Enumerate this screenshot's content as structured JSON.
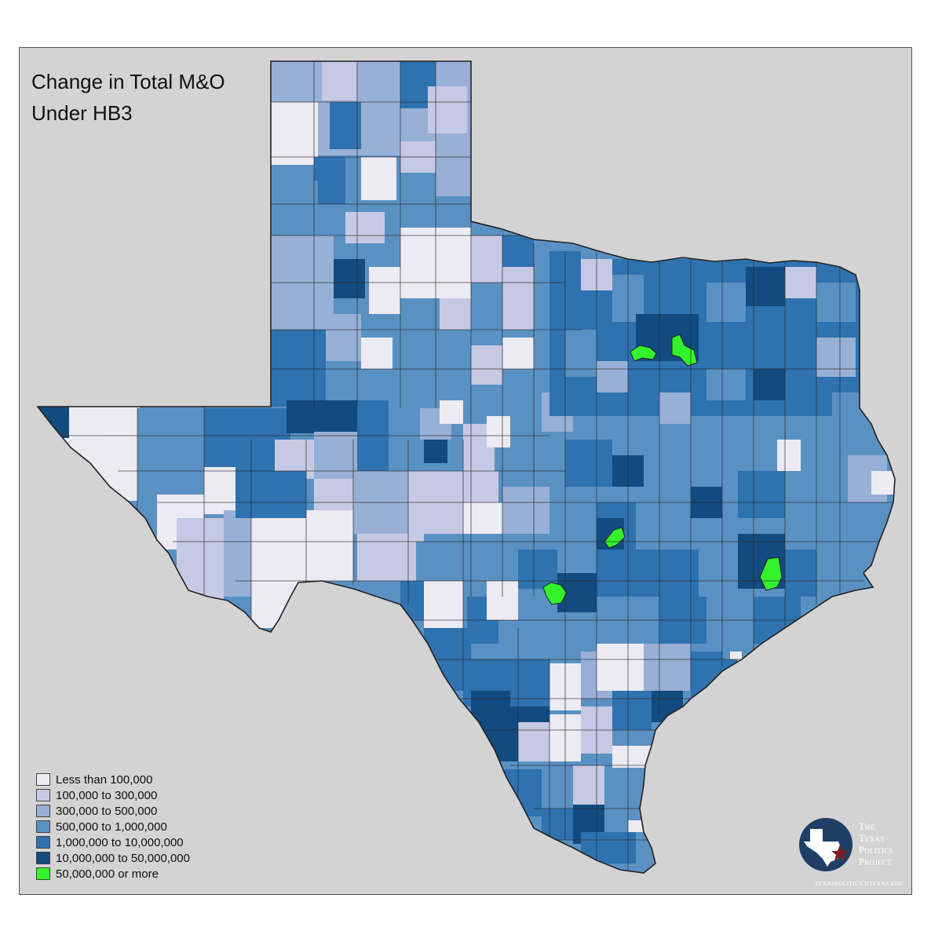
{
  "title": {
    "line1": "Change in Total M&O",
    "line2": "Under HB3"
  },
  "legend": {
    "items": [
      {
        "label": "Less than 100,000",
        "color": "#ecebf4"
      },
      {
        "label": "100,000 to 300,000",
        "color": "#c6c9e3"
      },
      {
        "label": "300,000 to 500,000",
        "color": "#98afd6"
      },
      {
        "label": "500,000 to 1,000,000",
        "color": "#5a91c3"
      },
      {
        "label": "1,000,000 to 10,000,000",
        "color": "#2e72b0"
      },
      {
        "label": "10,000,000 to 50,000,000",
        "color": "#124b7f"
      },
      {
        "label": "50,000,000 or more",
        "color": "#33f22b"
      }
    ]
  },
  "logo": {
    "line1": "The",
    "line2": "Texas",
    "line3": "Politics",
    "line4": "Project",
    "url": "TEXASPOLITICS.UTEXAS.EDU"
  },
  "colors": {
    "background": "#d3d3d3",
    "boundary": "#2a2a2a",
    "logo_navy": "#1e3f66",
    "logo_star": "#7a1f1f"
  }
}
